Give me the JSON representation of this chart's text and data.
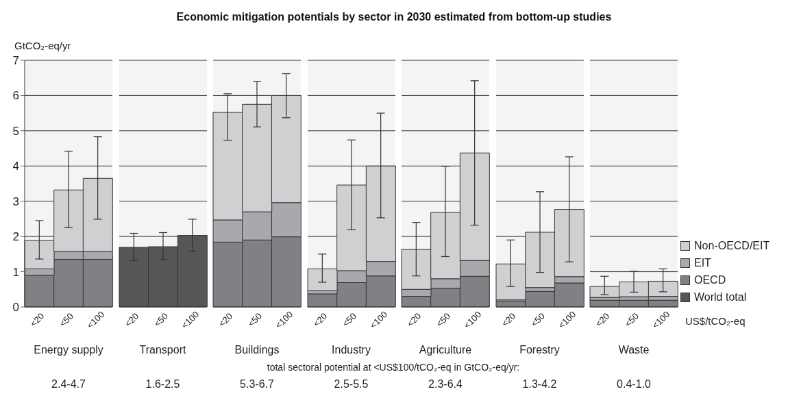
{
  "chart_data": [
    {
      "type": "bar",
      "legend": "right",
      "ylabel": "GtCO₂-eq/yr",
      "xlabel": "Energy supply",
      "categories": [
        "<20",
        "<50",
        "<100"
      ],
      "stacked": true,
      "ylim": [
        0,
        7
      ],
      "yticks": [
        0,
        1,
        2,
        3,
        4,
        5,
        6,
        7
      ],
      "grid": "y",
      "series": [
        {
          "name": "OECD",
          "color": "#808184",
          "values": [
            0.9,
            1.35,
            1.35
          ]
        },
        {
          "name": "EIT",
          "color": "#a8a9ac",
          "values": [
            0.18,
            0.22,
            0.22
          ]
        },
        {
          "name": "Non-OECD/EIT",
          "color": "#cfd0d2",
          "values": [
            0.81,
            1.75,
            2.08
          ],
          "errors": [
            [
              1.36,
              2.45
            ],
            [
              2.25,
              4.42
            ],
            [
              2.49,
              4.83
            ]
          ]
        }
      ],
      "annotations": [
        "total sectoral potential at <US$100/tCO₂-eq in GtCO₂-eq/yr:",
        "2.4-4.7"
      ]
    },
    {
      "type": "bar",
      "legend": "right",
      "xlabel": "Transport",
      "categories": [
        "<20",
        "<50",
        "<100"
      ],
      "stacked": true,
      "ylim": [
        0,
        7
      ],
      "yticks": [
        0,
        1,
        2,
        3,
        4,
        5,
        6,
        7
      ],
      "grid": "y",
      "tick_labels": "x",
      "series": [
        {
          "name": "World total",
          "color": "#555658",
          "values": [
            1.69,
            1.71,
            2.03
          ],
          "errors": [
            [
              1.32,
              2.09
            ],
            [
              1.35,
              2.11
            ],
            [
              1.58,
              2.49
            ]
          ]
        }
      ],
      "annotations": [
        "1.6-2.5"
      ]
    },
    {
      "type": "bar",
      "legend": "right",
      "xlabel": "Buildings",
      "categories": [
        "<20",
        "<50",
        "<100"
      ],
      "stacked": true,
      "ylim": [
        0,
        7
      ],
      "yticks": [
        0,
        1,
        2,
        3,
        4,
        5,
        6,
        7
      ],
      "grid": "y",
      "tick_labels": "x",
      "series": [
        {
          "name": "OECD",
          "color": "#808184",
          "values": [
            1.84,
            1.9,
            1.99
          ]
        },
        {
          "name": "EIT",
          "color": "#a8a9ac",
          "values": [
            0.63,
            0.8,
            0.97
          ]
        },
        {
          "name": "Non-OECD/EIT",
          "color": "#cfd0d2",
          "values": [
            3.05,
            3.05,
            3.04
          ],
          "errors": [
            [
              4.73,
              6.05
            ],
            [
              5.11,
              6.4
            ],
            [
              5.37,
              6.62
            ]
          ]
        }
      ],
      "annotations": [
        "5.3-6.7"
      ]
    },
    {
      "type": "bar",
      "title": "Economic mitigation potentials by sector in 2030 estimated from bottom-up studies",
      "legend": "right",
      "xlabel": "Industry",
      "categories": [
        "<20",
        "<50",
        "<100"
      ],
      "stacked": true,
      "ylim": [
        0,
        7
      ],
      "yticks": [
        0,
        1,
        2,
        3,
        4,
        5,
        6,
        7
      ],
      "grid": "y",
      "tick_labels": "x",
      "series": [
        {
          "name": "OECD",
          "color": "#808184",
          "values": [
            0.37,
            0.69,
            0.88
          ]
        },
        {
          "name": "EIT",
          "color": "#a8a9ac",
          "values": [
            0.09,
            0.34,
            0.41
          ]
        },
        {
          "name": "Non-OECD/EIT",
          "color": "#cfd0d2",
          "values": [
            0.62,
            2.43,
            2.71
          ],
          "errors": [
            [
              0.7,
              1.5
            ],
            [
              2.19,
              4.74
            ],
            [
              2.53,
              5.5
            ]
          ]
        }
      ],
      "annotations": [
        "2.5-5.5"
      ]
    },
    {
      "type": "bar",
      "legend": "right",
      "xlabel": "Agriculture",
      "categories": [
        "<20",
        "<50",
        "<100"
      ],
      "stacked": true,
      "ylim": [
        0,
        7
      ],
      "yticks": [
        0,
        1,
        2,
        3,
        4,
        5,
        6,
        7
      ],
      "grid": "y",
      "tick_labels": "x",
      "series": [
        {
          "name": "OECD",
          "color": "#808184",
          "values": [
            0.3,
            0.53,
            0.87
          ]
        },
        {
          "name": "EIT",
          "color": "#a8a9ac",
          "values": [
            0.2,
            0.27,
            0.45
          ]
        },
        {
          "name": "Non-OECD/EIT",
          "color": "#cfd0d2",
          "values": [
            1.13,
            1.88,
            3.05
          ],
          "errors": [
            [
              0.88,
              2.4
            ],
            [
              1.43,
              3.99
            ],
            [
              2.32,
              6.42
            ]
          ]
        }
      ],
      "annotations": [
        "2.3-6.4"
      ]
    },
    {
      "type": "bar",
      "legend": "right",
      "xlabel": "Forestry",
      "categories": [
        "<20",
        "<50",
        "<100"
      ],
      "stacked": true,
      "ylim": [
        0,
        7
      ],
      "yticks": [
        0,
        1,
        2,
        3,
        4,
        5,
        6,
        7
      ],
      "grid": "y",
      "tick_labels": "x",
      "series": [
        {
          "name": "OECD",
          "color": "#808184",
          "values": [
            0.15,
            0.44,
            0.68
          ]
        },
        {
          "name": "EIT",
          "color": "#a8a9ac",
          "values": [
            0.05,
            0.11,
            0.18
          ]
        },
        {
          "name": "Non-OECD/EIT",
          "color": "#cfd0d2",
          "values": [
            1.02,
            1.57,
            1.91
          ],
          "errors": [
            [
              0.58,
              1.9
            ],
            [
              0.98,
              3.27
            ],
            [
              1.28,
              4.26
            ]
          ]
        }
      ],
      "annotations": [
        "1.3-4.2"
      ]
    },
    {
      "type": "bar",
      "xlabel": "Waste",
      "categories": [
        "<20",
        "<50",
        "<100"
      ],
      "stacked": true,
      "ylim": [
        0,
        7
      ],
      "yticks": [
        0,
        1,
        2,
        3,
        4,
        5,
        6,
        7
      ],
      "grid": "y",
      "tick_labels": "x",
      "legend": "right",
      "series": [
        {
          "name": "OECD",
          "color": "#808184",
          "values": [
            0.19,
            0.19,
            0.19
          ]
        },
        {
          "name": "EIT",
          "color": "#a8a9ac",
          "values": [
            0.08,
            0.1,
            0.11
          ]
        },
        {
          "name": "Non-OECD/EIT",
          "color": "#cfd0d2",
          "values": [
            0.31,
            0.42,
            0.43
          ],
          "errors": [
            [
              0.35,
              0.87
            ],
            [
              0.42,
              1.01
            ],
            [
              0.43,
              1.08
            ]
          ]
        }
      ],
      "annotations": [
        "US$/tCO₂-eq",
        "0.4-1.0"
      ]
    }
  ]
}
